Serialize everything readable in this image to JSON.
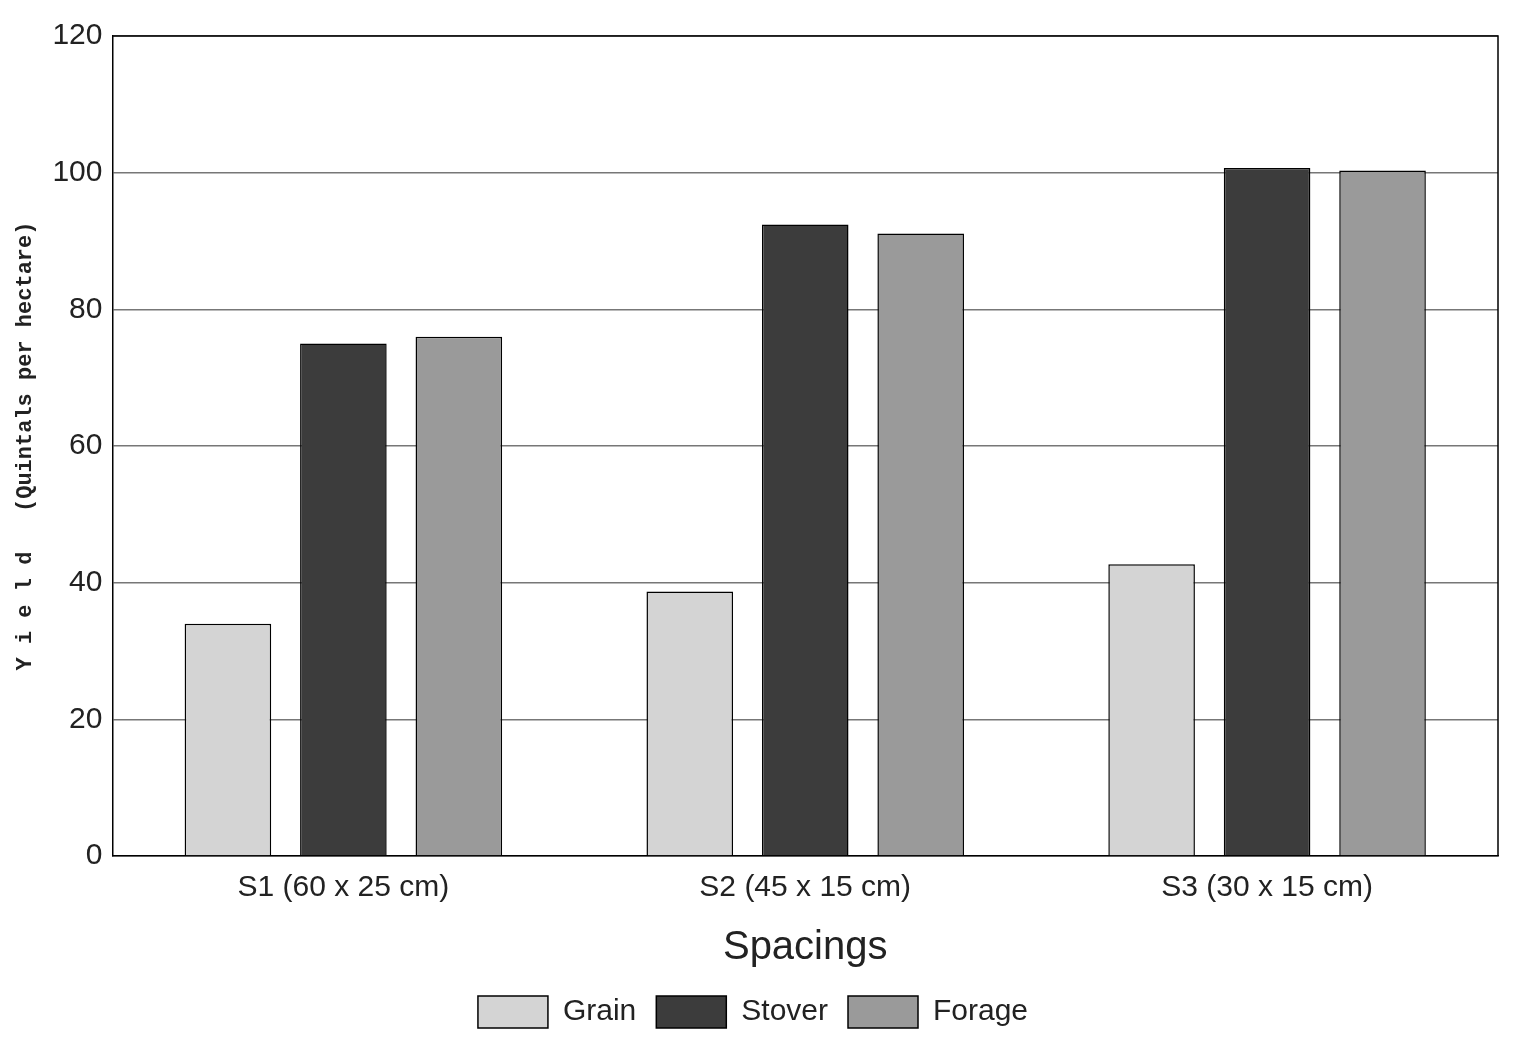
{
  "chart_data": {
    "type": "bar",
    "xlabel": "Spacings",
    "ylabel": "Y i e l d   (Quintals per hectare)",
    "categories": [
      "S1 (60 x 25 cm)",
      "S2 (45 x 15 cm)",
      "S3 (30 x 15 cm)"
    ],
    "series": [
      {
        "name": "Grain",
        "color": "#d4d4d4",
        "values": [
          34,
          38.7,
          42.7
        ]
      },
      {
        "name": "Stover",
        "color": "#3c3c3c",
        "values": [
          75,
          92.4,
          100.7
        ]
      },
      {
        "name": "Forage",
        "color": "#9a9a9a",
        "values": [
          76,
          91.1,
          100.3
        ]
      }
    ],
    "ylim": [
      0,
      120
    ],
    "yticks": [
      0,
      20,
      40,
      60,
      80,
      100,
      120
    ],
    "grid": "y",
    "legend": "bottom"
  }
}
